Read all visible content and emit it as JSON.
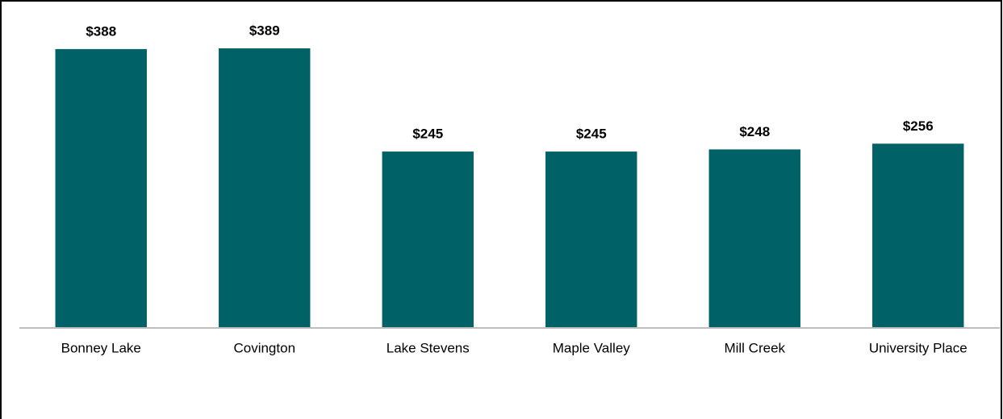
{
  "chart_data": {
    "type": "bar",
    "categories": [
      "Bonney Lake",
      "Covington",
      "Lake Stevens",
      "Maple Valley",
      "Mill Creek",
      "University Place"
    ],
    "values": [
      388,
      389,
      245,
      245,
      248,
      256
    ],
    "value_labels": [
      "$388",
      "$389",
      "$245",
      "$245",
      "$248",
      "$256"
    ],
    "color": "#006266"
  }
}
